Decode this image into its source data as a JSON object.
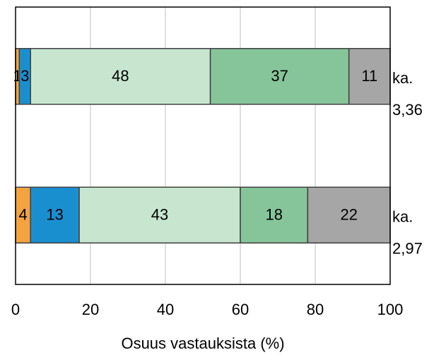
{
  "chart_data": {
    "type": "stacked-barh",
    "categories": [
      null,
      null
    ],
    "series": [
      {
        "color": "#f4a340",
        "values": [
          1,
          4
        ]
      },
      {
        "color": "#1a8fd0",
        "values": [
          3,
          13
        ]
      },
      {
        "color": "#c8e6cf",
        "values": [
          48,
          43
        ]
      },
      {
        "color": "#86c59a",
        "values": [
          37,
          18
        ]
      },
      {
        "color": "#a6a6a6",
        "values": [
          11,
          22
        ]
      }
    ],
    "annotations": [
      [
        "ka.",
        "3,36"
      ],
      [
        "ka.",
        "2,97"
      ]
    ],
    "xlabel": "Osuus vastauksista (%)",
    "xlim": [
      0,
      100
    ],
    "xticks": [
      0,
      20,
      40,
      60,
      80,
      100
    ],
    "grid": true
  }
}
